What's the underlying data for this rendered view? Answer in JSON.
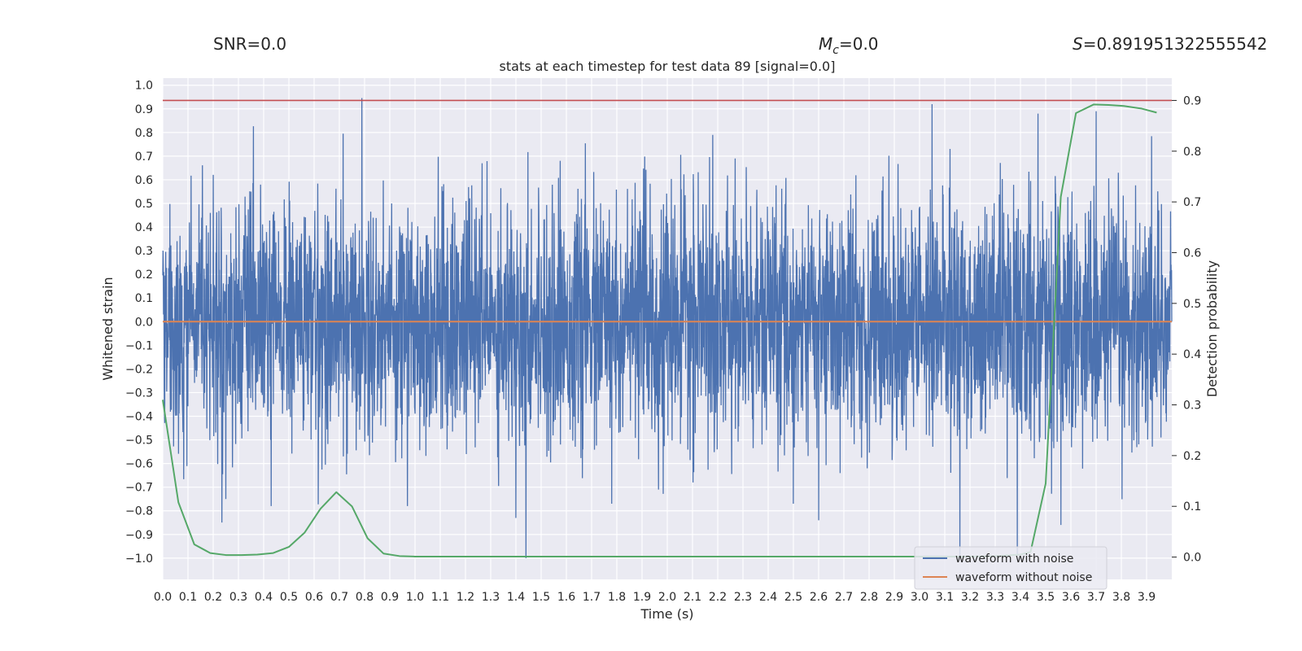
{
  "header": {
    "snr": "SNR=0.0",
    "mc_symbol": "M",
    "mc_subscript": "c",
    "mc_value": "=0.0",
    "s_symbol": "S",
    "s_value": "=0.891951322555542"
  },
  "chart_data": {
    "type": "line",
    "title": "stats at each timestep for test data 89 [signal=0.0]",
    "xlabel": "Time (s)",
    "ylabel": "Whitened strain",
    "y2label": "Detection probability",
    "xlim": [
      0.0,
      4.0
    ],
    "ylim": [
      -1.09,
      1.03
    ],
    "y2lim": [
      -0.044,
      0.944
    ],
    "x_ticks": [
      "0.0",
      "0.1",
      "0.2",
      "0.3",
      "0.4",
      "0.5",
      "0.6",
      "0.7",
      "0.8",
      "0.9",
      "1.0",
      "1.1",
      "1.2",
      "1.3",
      "1.4",
      "1.5",
      "1.6",
      "1.7",
      "1.8",
      "1.9",
      "2.0",
      "2.1",
      "2.2",
      "2.3",
      "2.4",
      "2.5",
      "2.6",
      "2.7",
      "2.8",
      "2.9",
      "3.0",
      "3.1",
      "3.2",
      "3.3",
      "3.4",
      "3.5",
      "3.6",
      "3.7",
      "3.8",
      "3.9"
    ],
    "y_ticks": [
      "1.0",
      "0.9",
      "0.8",
      "0.7",
      "0.6",
      "0.5",
      "0.4",
      "0.3",
      "0.2",
      "0.1",
      "0.0",
      "−0.1",
      "−0.2",
      "−0.3",
      "−0.4",
      "−0.5",
      "−0.6",
      "−0.7",
      "−0.8",
      "−0.9",
      "−1.0"
    ],
    "y2_ticks": [
      "0.9",
      "0.8",
      "0.7",
      "0.6",
      "0.5",
      "0.4",
      "0.3",
      "0.2",
      "0.1",
      "0.0"
    ],
    "threshold": {
      "value": 0.9,
      "axis": "y2",
      "color": "#c44e52"
    },
    "series": [
      {
        "name": "waveform with noise",
        "axis": "y",
        "color": "#4c72b0",
        "style": "noise",
        "samples": 4096,
        "amplitude_sd": 0.25,
        "peaks": [
          {
            "x": 3.05,
            "y": 0.92
          },
          {
            "x": 3.16,
            "y": -1.0
          },
          {
            "x": 1.44,
            "y": -1.0
          },
          {
            "x": 3.47,
            "y": 0.88
          },
          {
            "x": 3.7,
            "y": 0.89
          },
          {
            "x": 2.18,
            "y": 0.79
          },
          {
            "x": 1.4,
            "y": -0.83
          },
          {
            "x": 3.56,
            "y": -0.86
          },
          {
            "x": 2.6,
            "y": -0.84
          },
          {
            "x": 0.43,
            "y": -0.78
          },
          {
            "x": 0.25,
            "y": -0.75
          },
          {
            "x": 0.97,
            "y": -0.78
          },
          {
            "x": 1.78,
            "y": -0.77
          },
          {
            "x": 2.5,
            "y": -0.77
          }
        ]
      },
      {
        "name": "waveform without noise",
        "axis": "y",
        "color": "#dd8452",
        "x": [
          0.0,
          4.0
        ],
        "y": [
          0.0,
          0.0
        ]
      },
      {
        "name": "detection probability",
        "axis": "y2",
        "color": "#55a868",
        "x": [
          0.0,
          0.062,
          0.125,
          0.188,
          0.25,
          0.312,
          0.375,
          0.438,
          0.5,
          0.562,
          0.625,
          0.688,
          0.75,
          0.812,
          0.875,
          0.938,
          1.0,
          1.5,
          2.0,
          2.5,
          3.0,
          3.2,
          3.3,
          3.4,
          3.44,
          3.5,
          3.56,
          3.62,
          3.69,
          3.75,
          3.81,
          3.88,
          3.94
        ],
        "y": [
          0.31,
          0.108,
          0.025,
          0.008,
          0.004,
          0.004,
          0.005,
          0.008,
          0.02,
          0.048,
          0.095,
          0.128,
          0.1,
          0.037,
          0.007,
          0.002,
          0.001,
          0.001,
          0.001,
          0.001,
          0.001,
          0.001,
          0.002,
          0.005,
          0.01,
          0.145,
          0.71,
          0.875,
          0.892,
          0.891,
          0.889,
          0.884,
          0.876
        ]
      }
    ],
    "legend": {
      "position": "bottom-right",
      "entries": [
        {
          "label": "waveform with noise",
          "color": "#4c72b0"
        },
        {
          "label": "waveform without noise",
          "color": "#dd8452"
        }
      ]
    }
  }
}
